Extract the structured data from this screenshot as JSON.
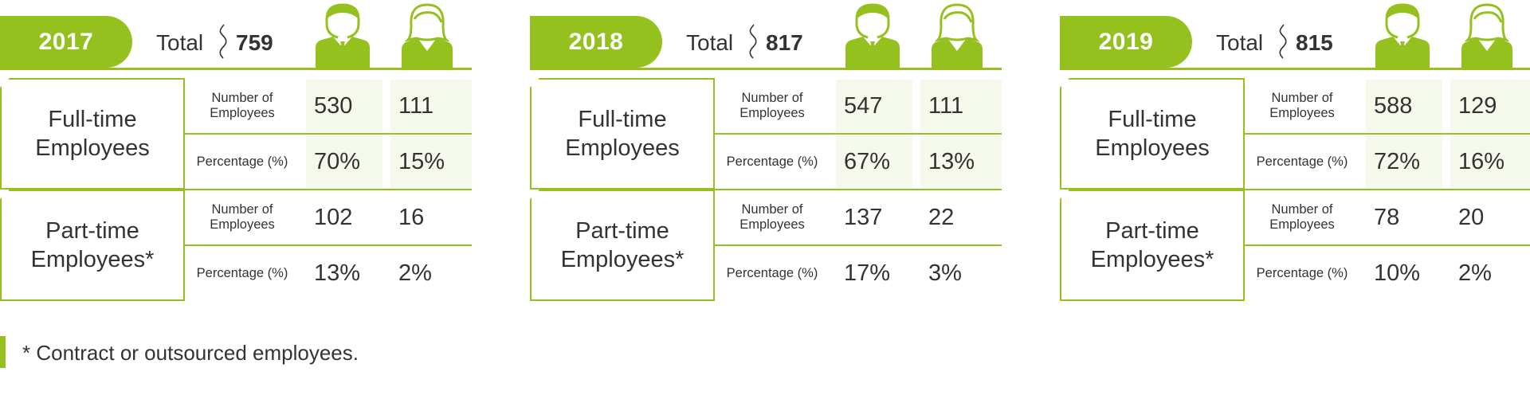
{
  "colors": {
    "accent": "#95c11f",
    "shade": "#f5f9ec",
    "text": "#333333"
  },
  "icons": {
    "male": "male-employee-icon",
    "female": "female-employee-icon"
  },
  "labels": {
    "total": "Total",
    "full_time": "Full-time Employees",
    "part_time": "Part-time Employees*",
    "number_of_employees": "Number of Employees",
    "percentage": "Percentage (%)"
  },
  "panels": [
    {
      "year": "2017",
      "total": "759",
      "full_time": {
        "number": {
          "male": "530",
          "female": "111"
        },
        "percentage": {
          "male": "70%",
          "female": "15%"
        }
      },
      "part_time": {
        "number": {
          "male": "102",
          "female": "16"
        },
        "percentage": {
          "male": "13%",
          "female": "2%"
        }
      }
    },
    {
      "year": "2018",
      "total": "817",
      "full_time": {
        "number": {
          "male": "547",
          "female": "111"
        },
        "percentage": {
          "male": "67%",
          "female": "13%"
        }
      },
      "part_time": {
        "number": {
          "male": "137",
          "female": "22"
        },
        "percentage": {
          "male": "17%",
          "female": "3%"
        }
      }
    },
    {
      "year": "2019",
      "total": "815",
      "full_time": {
        "number": {
          "male": "588",
          "female": "129"
        },
        "percentage": {
          "male": "72%",
          "female": "16%"
        }
      },
      "part_time": {
        "number": {
          "male": "78",
          "female": "20"
        },
        "percentage": {
          "male": "10%",
          "female": "2%"
        }
      }
    }
  ],
  "footnote": "* Contract or outsourced employees."
}
